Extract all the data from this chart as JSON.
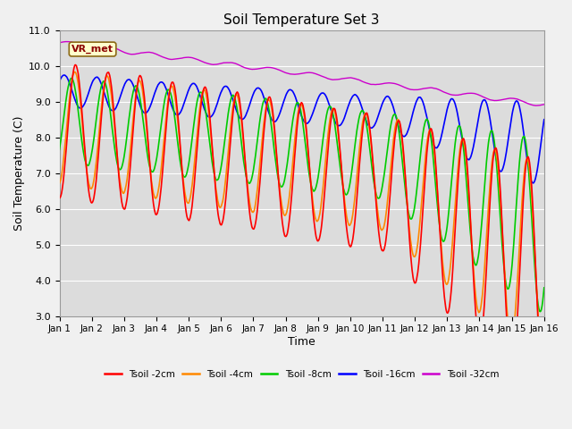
{
  "title": "Soil Temperature Set 3",
  "xlabel": "Time",
  "ylabel": "Soil Temperature (C)",
  "ylim": [
    3.0,
    11.0
  ],
  "yticks": [
    3.0,
    4.0,
    5.0,
    6.0,
    7.0,
    8.0,
    9.0,
    10.0,
    11.0
  ],
  "xtick_labels": [
    "Jan 1",
    "Jan 2",
    "Jan 3",
    "Jan 4",
    "Jan 5",
    "Jan 6",
    "Jan 7",
    "Jan 8",
    "Jan 9",
    "Jan 10",
    "Jan 11",
    "Jan 12",
    "Jan 13",
    "Jan 14",
    "Jan 15",
    "Jan 16"
  ],
  "colors": {
    "Tsoil -2cm": "#ff0000",
    "Tsoil -4cm": "#ff8800",
    "Tsoil -8cm": "#00cc00",
    "Tsoil -16cm": "#0000ff",
    "Tsoil -32cm": "#cc00cc"
  },
  "bg_color": "#dcdcdc",
  "fig_color": "#f0f0f0",
  "watermark": "VR_met",
  "legend_labels": [
    "Tsoil -2cm",
    "Tsoil -4cm",
    "Tsoil -8cm",
    "Tsoil -16cm",
    "Tsoil -32cm"
  ]
}
